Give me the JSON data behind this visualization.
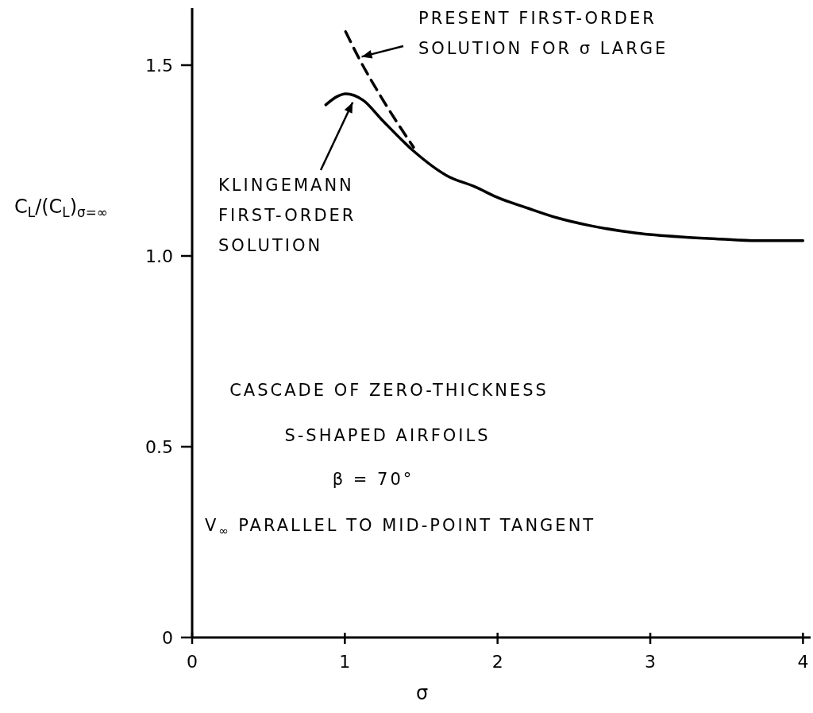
{
  "chart_data": {
    "type": "line",
    "xlabel": "σ",
    "ylabel": "C$_{L}$/(C$_{L}$)$_{σ=∞}$",
    "xlim": [
      0,
      4.05
    ],
    "ylim": [
      0,
      1.65
    ],
    "xticks": [
      0,
      1,
      2,
      3,
      4
    ],
    "yticks": [
      0,
      0.5,
      {
        "value": 1,
        "label": "1.0"
      },
      1.5
    ],
    "grid": false,
    "marker": "none",
    "series": [
      {
        "color": "#000000",
        "line_style": "solid",
        "x": [
          0.875,
          0.95,
          1.005,
          1.12,
          1.24,
          1.45,
          1.67,
          1.86,
          1.99,
          2.2,
          2.39,
          2.6,
          2.91,
          3.2,
          3.43,
          3.7,
          4.0
        ],
        "values": [
          1.396,
          1.418,
          1.425,
          1.408,
          1.358,
          1.275,
          1.21,
          1.18,
          1.155,
          1.125,
          1.1,
          1.08,
          1.06,
          1.05,
          1.045,
          1.04,
          1.04
        ]
      },
      {
        "color": "#000000",
        "line_style": "dashed",
        "x": [
          1.005,
          1.09,
          1.24,
          1.35,
          1.45
        ],
        "values": [
          1.588,
          1.52,
          1.415,
          1.345,
          1.285
        ]
      }
    ],
    "annotations": [
      {
        "text": "PRESENT FIRST-ORDER SOLUTION FOR σ LARGE",
        "x": 1.09,
        "y": 1.52
      },
      {
        "text": "KLINGEMANN FIRST-ORDER SOLUTION",
        "x": 1.06,
        "y": 1.41
      },
      "CASCADE OF ZERO-THICKNESS",
      "S-SHAPED AIRFOILS",
      "β = 70°",
      "V$_{∞}$ PARALLEL TO MID-POINT TANGENT"
    ]
  }
}
